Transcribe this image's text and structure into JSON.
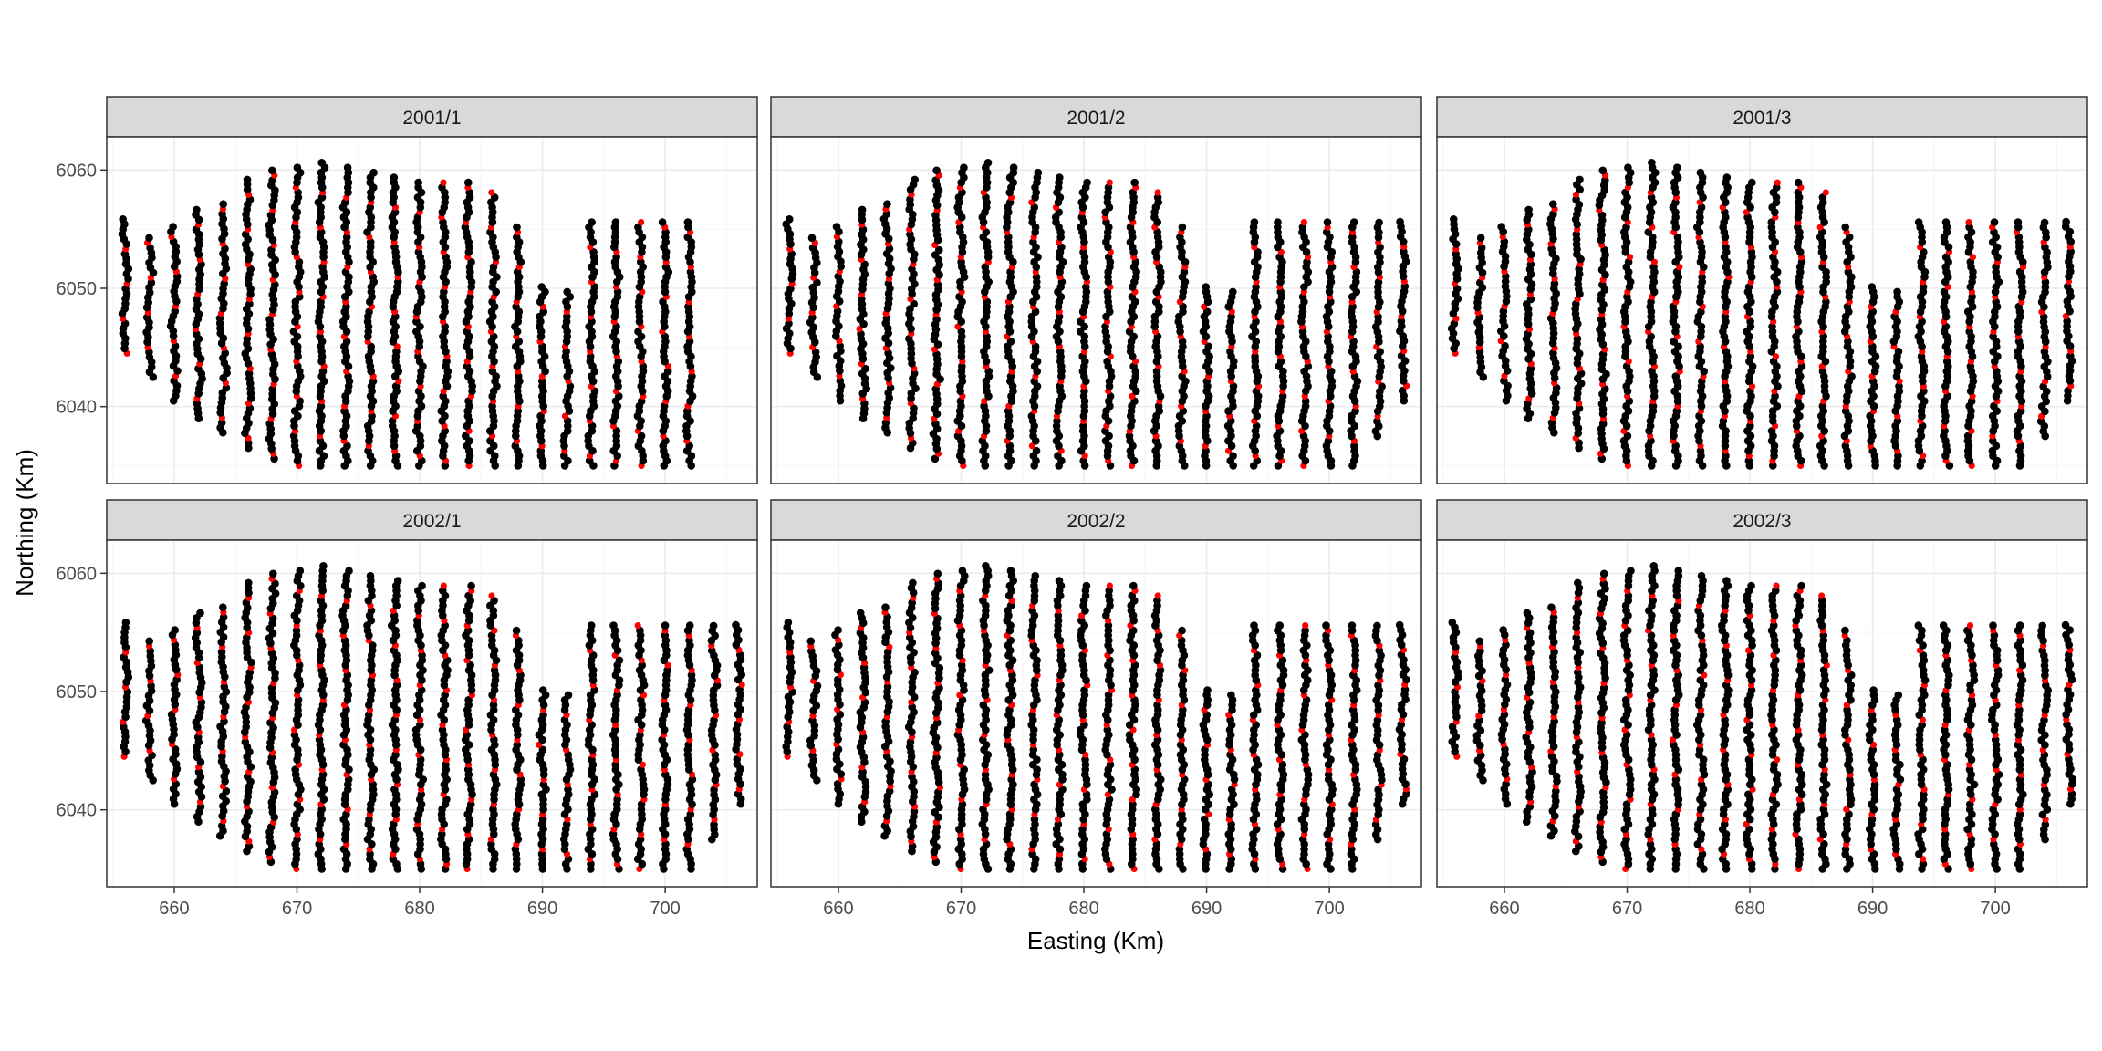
{
  "chart_data": {
    "type": "scatter",
    "layout": "facet grid, 2 rows x 3 columns, shared axes",
    "xlabel": "Easting (Km)",
    "ylabel": "Northing (Km)",
    "xlim": [
      654.5,
      707.5
    ],
    "ylim": [
      6033.5,
      6062.8
    ],
    "x_ticks": [
      660,
      670,
      680,
      690,
      700
    ],
    "y_ticks": [
      6040,
      6050,
      6060
    ],
    "grid": true,
    "colors": {
      "points": "#000000",
      "highlight": "#ff0000",
      "strip": "#d9d9d9",
      "grid_major": "#ebebeb",
      "grid_minor": "#f5f5f5"
    },
    "transect_x": [
      656,
      658,
      660,
      662,
      664,
      666,
      668,
      670,
      672,
      674,
      676,
      678,
      680,
      682,
      684,
      686,
      688,
      690,
      692,
      694,
      696,
      698,
      700,
      702,
      704,
      706
    ],
    "transect_y_min": [
      6044.5,
      6042.5,
      6040.5,
      6039.0,
      6037.8,
      6036.5,
      6035.6,
      6035.0,
      6035.0,
      6035.0,
      6035.0,
      6035.0,
      6035.0,
      6035.0,
      6035.0,
      6035.0,
      6035.0,
      6035.0,
      6035.0,
      6035.0,
      6035.0,
      6035.0,
      6035.0,
      6035.0,
      6037.5,
      6040.5
    ],
    "transect_y_max": [
      6056.0,
      6054.5,
      6055.5,
      6057.0,
      6057.5,
      6059.5,
      6060.3,
      6060.5,
      6060.7,
      6060.5,
      6060.0,
      6059.5,
      6059.2,
      6059.3,
      6059.3,
      6058.2,
      6055.5,
      6050.5,
      6049.7,
      6055.8,
      6055.8,
      6055.8,
      6055.8,
      6055.8,
      6055.8,
      6055.8
    ],
    "panels": [
      {
        "label": "2001/1",
        "omit_x": [
          704,
          706
        ]
      },
      {
        "label": "2001/2",
        "omit_x": []
      },
      {
        "label": "2001/3",
        "omit_x": []
      },
      {
        "label": "2002/1",
        "omit_x": []
      },
      {
        "label": "2002/2",
        "omit_x": []
      },
      {
        "label": "2002/3",
        "omit_x": []
      }
    ]
  }
}
